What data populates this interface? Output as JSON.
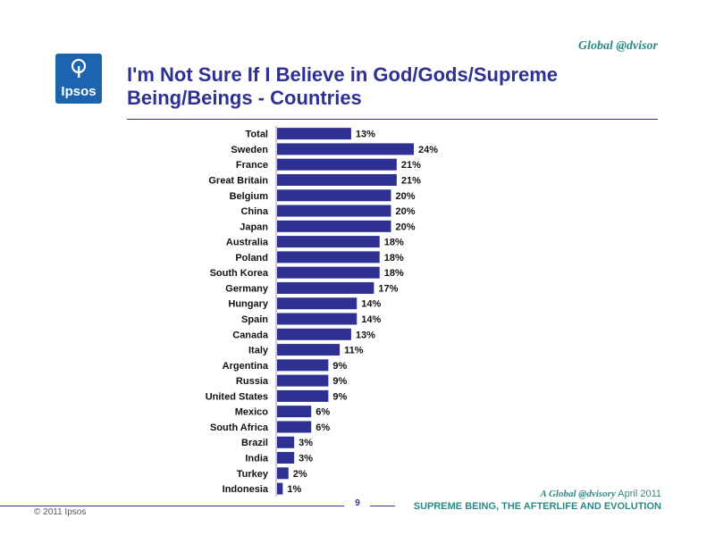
{
  "header": {
    "brand": "Global @dvisor",
    "logo_text": "Ipsos",
    "title_line1": "I'm Not Sure If I Believe in God/Gods/Supreme",
    "title_line2": "Being/Beings - Countries"
  },
  "colors": {
    "bar": "#2e3192",
    "title": "#2e3192",
    "accent": "#2a8a84"
  },
  "chart_data": {
    "type": "bar",
    "orientation": "horizontal",
    "categories": [
      "Total",
      "Sweden",
      "France",
      "Great Britain",
      "Belgium",
      "China",
      "Japan",
      "Australia",
      "Poland",
      "South Korea",
      "Germany",
      "Hungary",
      "Spain",
      "Canada",
      "Italy",
      "Argentina",
      "Russia",
      "United States",
      "Mexico",
      "South Africa",
      "Brazil",
      "India",
      "Turkey",
      "Indonesia"
    ],
    "values": [
      13,
      24,
      21,
      21,
      20,
      20,
      20,
      18,
      18,
      18,
      17,
      14,
      14,
      13,
      11,
      9,
      9,
      9,
      6,
      6,
      3,
      3,
      2,
      1
    ],
    "data_labels": [
      "13%",
      "24%",
      "21%",
      "21%",
      "20%",
      "20%",
      "20%",
      "18%",
      "18%",
      "18%",
      "17%",
      "14%",
      "14%",
      "13%",
      "11%",
      "9%",
      "9%",
      "9%",
      "6%",
      "6%",
      "3%",
      "3%",
      "2%",
      "1%"
    ],
    "title": "I'm Not Sure If I Believe in God/Gods/Supreme Being/Beings - Countries",
    "xlabel": "",
    "ylabel": "",
    "xlim": [
      0,
      25
    ],
    "grid": false,
    "legend": "none"
  },
  "footer": {
    "page_number": "9",
    "brand": "A Global @dvisory",
    "date": "April 2011",
    "subtitle": "SUPREME BEING, THE AFTERLIFE AND EVOLUTION",
    "copyright": "© 2011 Ipsos"
  }
}
